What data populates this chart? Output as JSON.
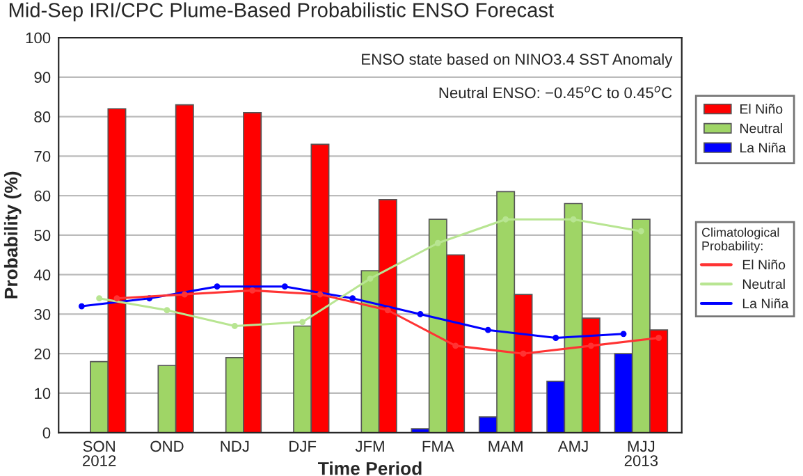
{
  "chart_data": {
    "type": "bar",
    "title": "Mid-Sep IRI/CPC Plume-Based Probabilistic ENSO Forecast",
    "xlabel": "Time Period",
    "ylabel": "Probability (%)",
    "legend_title": "Climatological Probability:",
    "categories": [
      "SON\n2012",
      "OND",
      "NDJ",
      "DJF",
      "JFM",
      "FMA",
      "MAM",
      "AMJ",
      "MJJ\n2013"
    ],
    "series": [
      {
        "name": "La Niña",
        "color": "#0000ff",
        "values": [
          0,
          0,
          0,
          0,
          0,
          1,
          4,
          13,
          20
        ]
      },
      {
        "name": "Neutral",
        "color": "#9fd566",
        "values": [
          18,
          17,
          19,
          27,
          41,
          54,
          61,
          58,
          54
        ]
      },
      {
        "name": "El Niño",
        "color": "#ff0000",
        "values": [
          82,
          83,
          81,
          73,
          59,
          45,
          35,
          29,
          26
        ]
      },
      {
        "name": "La Niña",
        "type": "line",
        "color": "#0000ff",
        "values": [
          32,
          34,
          37,
          37,
          34,
          30,
          26,
          24,
          25
        ]
      },
      {
        "name": "Neutral",
        "type": "line",
        "color": "#b8e592",
        "values": [
          34,
          31,
          27,
          28,
          39,
          48,
          54,
          54,
          51
        ]
      },
      {
        "name": "El Niño",
        "type": "line",
        "color": "#ff3333",
        "values": [
          34,
          35,
          36,
          35,
          31,
          22,
          20,
          22,
          24
        ]
      }
    ],
    "annotations": [
      "ENSO state based on NINO3.4 SST Anomaly",
      "Neutral ENSO: −0.45$^{o}$C to 0.45$^{o}$C"
    ],
    "ylim": [
      0,
      100
    ],
    "yticks": [
      0,
      10,
      20,
      30,
      40,
      50,
      60,
      70,
      80,
      90,
      100
    ],
    "grid": "y",
    "legend": "right",
    "marker": "circle",
    "line_style": "solid"
  }
}
